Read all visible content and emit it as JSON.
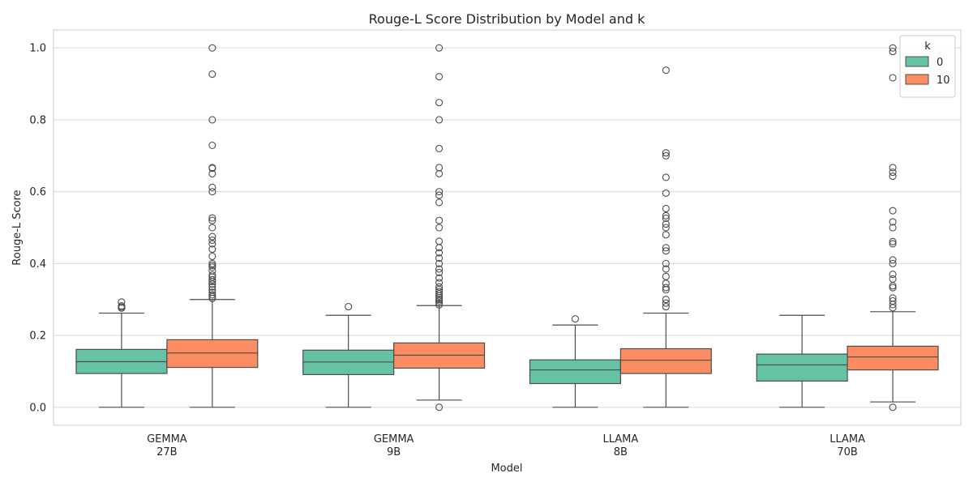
{
  "chart_data": {
    "type": "box",
    "title": "Rouge-L Score Distribution by Model and k",
    "xlabel": "Model",
    "ylabel": "Rouge-L Score",
    "ylim": [
      -0.05,
      1.05
    ],
    "yticks": [
      0.0,
      0.2,
      0.4,
      0.6,
      0.8,
      1.0
    ],
    "yticklabels": [
      "0.0",
      "0.2",
      "0.4",
      "0.6",
      "0.8",
      "1.0"
    ],
    "grid": true,
    "legend": {
      "title": "k",
      "placement": "top-right"
    },
    "categories": [
      {
        "line1": "GEMMA",
        "line2": "27B"
      },
      {
        "line1": "GEMMA",
        "line2": "9B"
      },
      {
        "line1": "LLAMA",
        "line2": "8B"
      },
      {
        "line1": "LLAMA",
        "line2": "70B"
      }
    ],
    "series": [
      {
        "name": "0",
        "color": "#66c2a5",
        "boxes": [
          {
            "whisker_low": 0.0,
            "q1": 0.094,
            "median": 0.127,
            "q3": 0.161,
            "whisker_high": 0.262,
            "outliers": [
              0.276,
              0.279,
              0.282,
              0.293
            ]
          },
          {
            "whisker_low": 0.0,
            "q1": 0.091,
            "median": 0.126,
            "q3": 0.159,
            "whisker_high": 0.256,
            "outliers": [
              0.28
            ]
          },
          {
            "whisker_low": 0.0,
            "q1": 0.066,
            "median": 0.104,
            "q3": 0.132,
            "whisker_high": 0.229,
            "outliers": [
              0.246
            ]
          },
          {
            "whisker_low": 0.0,
            "q1": 0.073,
            "median": 0.118,
            "q3": 0.148,
            "whisker_high": 0.256,
            "outliers": []
          }
        ]
      },
      {
        "name": "10",
        "color": "#fc8d62",
        "boxes": [
          {
            "whisker_low": 0.0,
            "q1": 0.111,
            "median": 0.151,
            "q3": 0.188,
            "whisker_high": 0.3,
            "outliers": [
              0.303,
              0.308,
              0.313,
              0.32,
              0.327,
              0.335,
              0.343,
              0.35,
              0.355,
              0.362,
              0.368,
              0.38,
              0.39,
              0.395,
              0.4,
              0.42,
              0.44,
              0.455,
              0.465,
              0.475,
              0.5,
              0.52,
              0.527,
              0.6,
              0.612,
              0.65,
              0.665,
              0.667,
              0.729,
              0.8,
              0.927,
              1.0
            ]
          },
          {
            "whisker_low": 0.02,
            "q1": 0.109,
            "median": 0.145,
            "q3": 0.179,
            "whisker_high": 0.283,
            "outliers": [
              0.0,
              0.285,
              0.29,
              0.296,
              0.3,
              0.305,
              0.31,
              0.316,
              0.322,
              0.328,
              0.335,
              0.347,
              0.36,
              0.375,
              0.385,
              0.4,
              0.415,
              0.43,
              0.444,
              0.462,
              0.5,
              0.52,
              0.57,
              0.59,
              0.6,
              0.65,
              0.667,
              0.72,
              0.8,
              0.848,
              0.92,
              1.0
            ]
          },
          {
            "whisker_low": 0.0,
            "q1": 0.094,
            "median": 0.131,
            "q3": 0.163,
            "whisker_high": 0.262,
            "outliers": [
              0.28,
              0.29,
              0.3,
              0.327,
              0.333,
              0.345,
              0.364,
              0.385,
              0.4,
              0.435,
              0.444,
              0.48,
              0.5,
              0.51,
              0.526,
              0.533,
              0.553,
              0.596,
              0.64,
              0.7,
              0.708,
              0.938
            ]
          },
          {
            "whisker_low": 0.015,
            "q1": 0.104,
            "median": 0.14,
            "q3": 0.17,
            "whisker_high": 0.266,
            "outliers": [
              0.0,
              0.277,
              0.286,
              0.296,
              0.304,
              0.333,
              0.338,
              0.357,
              0.37,
              0.4,
              0.41,
              0.455,
              0.461,
              0.5,
              0.516,
              0.547,
              0.643,
              0.654,
              0.667,
              0.917,
              0.99,
              1.0
            ]
          }
        ]
      }
    ]
  }
}
